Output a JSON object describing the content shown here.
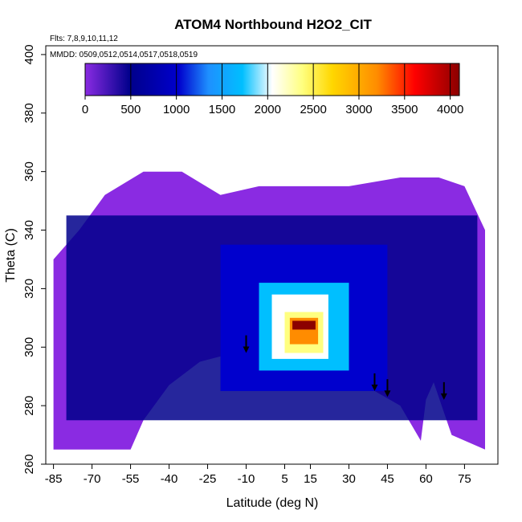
{
  "chart_data": {
    "type": "heatmap",
    "title": "ATOM4 Northbound H2O2_CIT",
    "annotations": {
      "flights": "Flts: 7,8,9,10,11,12",
      "dates": "MMDD: 0509,0512,0514,0517,0518,0519"
    },
    "xlabel": "Latitude (deg N)",
    "ylabel": "Theta (C)",
    "xlim": [
      -88,
      88
    ],
    "ylim": [
      260,
      403
    ],
    "x_ticks": [
      -85,
      -70,
      -55,
      -40,
      -25,
      -10,
      5,
      15,
      30,
      45,
      60,
      75
    ],
    "x_tick_labels": [
      "-85",
      "-70",
      "-55",
      "-40",
      "-25",
      "-10",
      "5",
      "15",
      "30",
      "45",
      "60",
      "75"
    ],
    "y_ticks": [
      260,
      280,
      300,
      320,
      340,
      360,
      380,
      400
    ],
    "y_tick_labels": [
      "260",
      "280",
      "300",
      "320",
      "340",
      "360",
      "380",
      "400"
    ],
    "colorbar": {
      "range": [
        0,
        4100
      ],
      "ticks": [
        0,
        500,
        1000,
        1500,
        2000,
        2500,
        3000,
        3500,
        4000
      ],
      "tick_labels": [
        "0",
        "500",
        "1000",
        "1500",
        "2000",
        "2500",
        "3000",
        "3500",
        "4000"
      ],
      "colors": [
        "#8a2be2",
        "#00008b",
        "#0000cd",
        "#1e90ff",
        "#00bfff",
        "#ffffff",
        "#ffff80",
        "#ffd700",
        "#ff8c00",
        "#ff0000",
        "#8b0000"
      ]
    },
    "background_value": 200,
    "regions": [
      {
        "lat": [
          -80,
          80
        ],
        "theta": [
          275,
          345
        ],
        "value": 600
      },
      {
        "lat": [
          -20,
          45
        ],
        "theta": [
          285,
          335
        ],
        "value": 1000
      },
      {
        "lat": [
          -5,
          30
        ],
        "theta": [
          292,
          322
        ],
        "value": 1500
      },
      {
        "lat": [
          0,
          22
        ],
        "theta": [
          296,
          318
        ],
        "value": 2000
      },
      {
        "lat": [
          5,
          20
        ],
        "theta": [
          298,
          312
        ],
        "value": 2600
      },
      {
        "lat": [
          7,
          18
        ],
        "theta": [
          301,
          310
        ],
        "value": 3300
      },
      {
        "lat": [
          8,
          17
        ],
        "theta": [
          306,
          309
        ],
        "value": 4000
      }
    ],
    "arrows": [
      {
        "lat": -10,
        "theta": 298
      },
      {
        "lat": 40,
        "theta": 285
      },
      {
        "lat": 45,
        "theta": 283
      },
      {
        "lat": 67,
        "theta": 282
      }
    ]
  }
}
